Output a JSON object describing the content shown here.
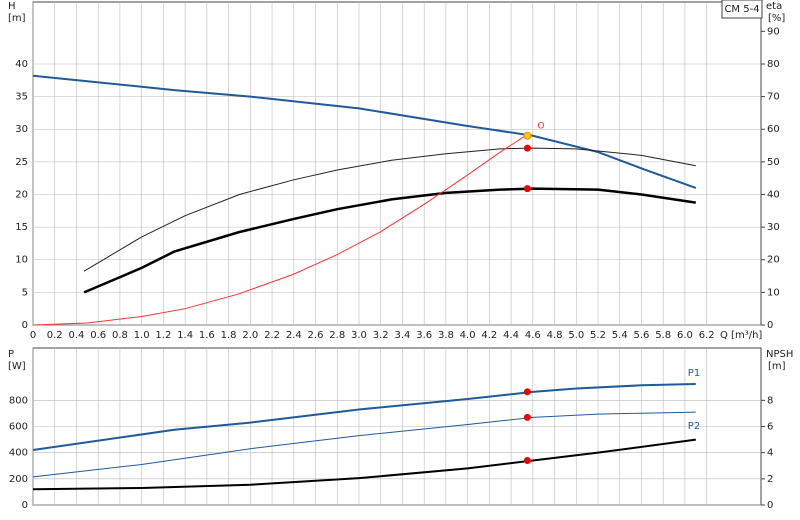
{
  "chart_data": [
    {
      "type": "line",
      "title": "CM 5-4",
      "x_label": "Q [m³/h]",
      "y_label": "H",
      "y_unit": "[m]",
      "y2_label": "eta",
      "y2_unit": "[%]",
      "xlim": [
        0,
        6.7
      ],
      "ylim": [
        0,
        49.5
      ],
      "y2lim": [
        0,
        99
      ],
      "grid": true,
      "xticks": [
        0,
        0.2,
        0.4,
        0.6,
        0.8,
        {
          "value": 1,
          "label": "1.0"
        },
        1.2,
        1.4,
        1.6,
        1.8,
        {
          "value": 2,
          "label": "2.0"
        },
        2.2,
        2.4,
        2.6,
        2.8,
        {
          "value": 3,
          "label": "3.0"
        },
        3.2,
        3.4,
        3.6,
        3.8,
        {
          "value": 4,
          "label": "4.0"
        },
        4.2,
        4.4,
        4.6,
        4.8,
        {
          "value": 5,
          "label": "5.0"
        },
        5.2,
        5.4,
        5.6,
        5.8,
        {
          "value": 6,
          "label": "6.0"
        },
        6.2
      ],
      "yticks": [
        0,
        5,
        10,
        15,
        20,
        25,
        30,
        35,
        40
      ],
      "y2ticks": [
        0,
        10,
        20,
        30,
        40,
        50,
        60,
        70,
        80,
        90
      ],
      "series": [
        {
          "color": "#1f5a9a",
          "width": 2,
          "x": [
            0,
            1.3,
            2,
            3,
            4,
            4.6,
            5.2,
            5.6,
            6.1
          ],
          "values": [
            38.2,
            36,
            35,
            33.2,
            30.5,
            29,
            26.5,
            24,
            21
          ]
        },
        {
          "color": "#222222",
          "width": 1,
          "axis": "y2",
          "x": [
            0.47,
            1,
            1.4,
            1.9,
            2.4,
            2.8,
            3.3,
            3.8,
            4.3,
            4.6,
            5,
            5.6,
            6.1
          ],
          "values": [
            16.5,
            27,
            33.5,
            40,
            44.5,
            47.5,
            50.5,
            52.5,
            54,
            54.2,
            54,
            52,
            48.8
          ]
        },
        {
          "color": "#000000",
          "width": 2.5,
          "axis": "y2",
          "x": [
            0.47,
            1,
            1.3,
            1.9,
            2.4,
            2.8,
            3.3,
            3.8,
            4.3,
            4.6,
            5.2,
            5.6,
            6.1
          ],
          "values": [
            10,
            17.5,
            22.5,
            28.5,
            32.5,
            35.5,
            38.5,
            40.5,
            41.5,
            41.8,
            41.5,
            40,
            37.5
          ]
        },
        {
          "color": "#ff3333",
          "width": 1,
          "x": [
            0,
            0.5,
            1,
            1.4,
            1.9,
            2.4,
            2.8,
            3.2,
            3.6,
            4,
            4.3,
            4.55
          ],
          "values": [
            0,
            0.3,
            1.3,
            2.5,
            4.8,
            7.8,
            10.8,
            14.3,
            18.5,
            23,
            26.5,
            29.2
          ]
        }
      ],
      "points": [
        {
          "x": 4.55,
          "y": 29,
          "color": "#ffcc00"
        },
        {
          "x": 4.55,
          "y": 54.2,
          "axis": "y2",
          "color": "#ee0000"
        },
        {
          "x": 4.55,
          "y": 41.8,
          "axis": "y2",
          "color": "#ee0000"
        }
      ],
      "annotation": "O"
    },
    {
      "type": "line",
      "y_label": "P",
      "y_unit": "[W]",
      "y2_label": "NPSH",
      "y2_unit": "[m]",
      "xlim": [
        0,
        6.7
      ],
      "ylim": [
        0,
        1200
      ],
      "y2lim": [
        0,
        12
      ],
      "grid": true,
      "yticks": [
        0,
        200,
        400,
        600,
        800
      ],
      "y2ticks": [
        0,
        2,
        4,
        6,
        8
      ],
      "series": [
        {
          "name": "P1",
          "color": "#1f5a9a",
          "width": 2,
          "x": [
            0,
            1.3,
            2,
            3,
            4,
            4.6,
            5,
            5.6,
            6.1
          ],
          "values": [
            420,
            575,
            630,
            730,
            810,
            865,
            890,
            915,
            925
          ]
        },
        {
          "name": "P2",
          "color": "#1f5a9a",
          "width": 1,
          "x": [
            0,
            1,
            2,
            3,
            4,
            4.6,
            5.2,
            6.1
          ],
          "values": [
            215,
            310,
            430,
            530,
            615,
            670,
            695,
            710
          ]
        },
        {
          "color": "#000000",
          "width": 2,
          "axis": "y2",
          "x": [
            0,
            1,
            2,
            3,
            4,
            4.6,
            5.2,
            6.1
          ],
          "values": [
            1.2,
            1.3,
            1.55,
            2.05,
            2.8,
            3.4,
            4,
            5
          ]
        }
      ],
      "points": [
        {
          "x": 4.55,
          "y": 865,
          "color": "#ee0000"
        },
        {
          "x": 4.55,
          "y": 670,
          "color": "#ee0000"
        },
        {
          "x": 4.55,
          "y": 3.4,
          "axis": "y2",
          "color": "#ee0000"
        }
      ]
    }
  ]
}
